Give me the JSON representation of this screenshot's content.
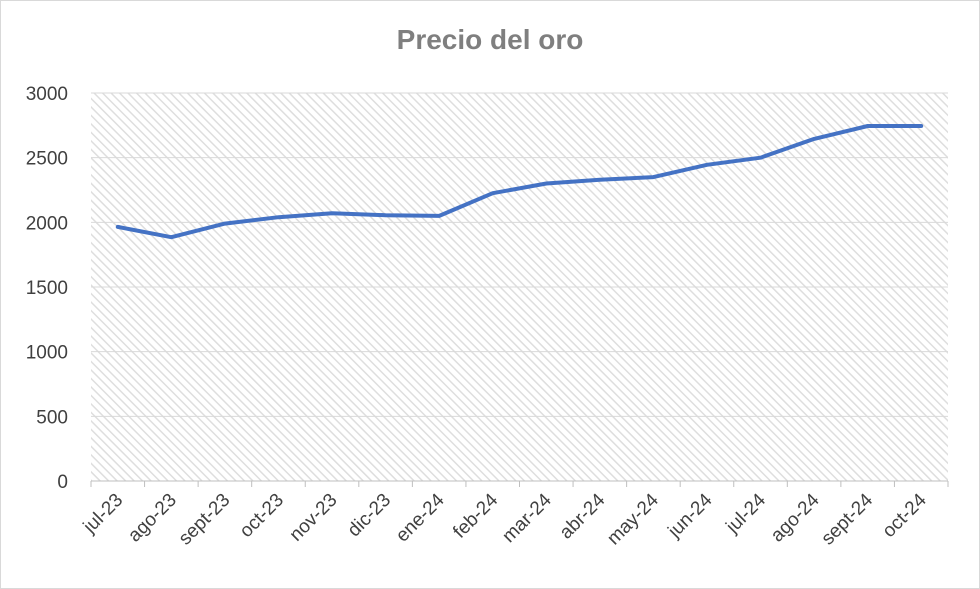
{
  "chart_data": {
    "type": "line",
    "title": "Precio del oro",
    "xlabel": "",
    "ylabel": "",
    "categories": [
      "jul-23",
      "ago-23",
      "sept-23",
      "oct-23",
      "nov-23",
      "dic-23",
      "ene-24",
      "feb-24",
      "mar-24",
      "abr-24",
      "may-24",
      "jun-24",
      "jul-24",
      "ago-24",
      "sept-24",
      "oct-24"
    ],
    "series": [
      {
        "values": [
          1965,
          1885,
          1990,
          2040,
          2070,
          2055,
          2050,
          2225,
          2300,
          2330,
          2350,
          2445,
          2500,
          2645,
          2745,
          2745
        ]
      }
    ],
    "ylim": [
      0,
      3000
    ],
    "yticks": [
      "0",
      "500",
      "1000",
      "1500",
      "2000",
      "2500",
      "3000"
    ],
    "grid": true,
    "legend": "none",
    "colors": {
      "line": "#4472c4",
      "grid": "#d9d9d9",
      "title": "#7f7f7f",
      "plot_pattern": "#e3e3e3"
    }
  }
}
